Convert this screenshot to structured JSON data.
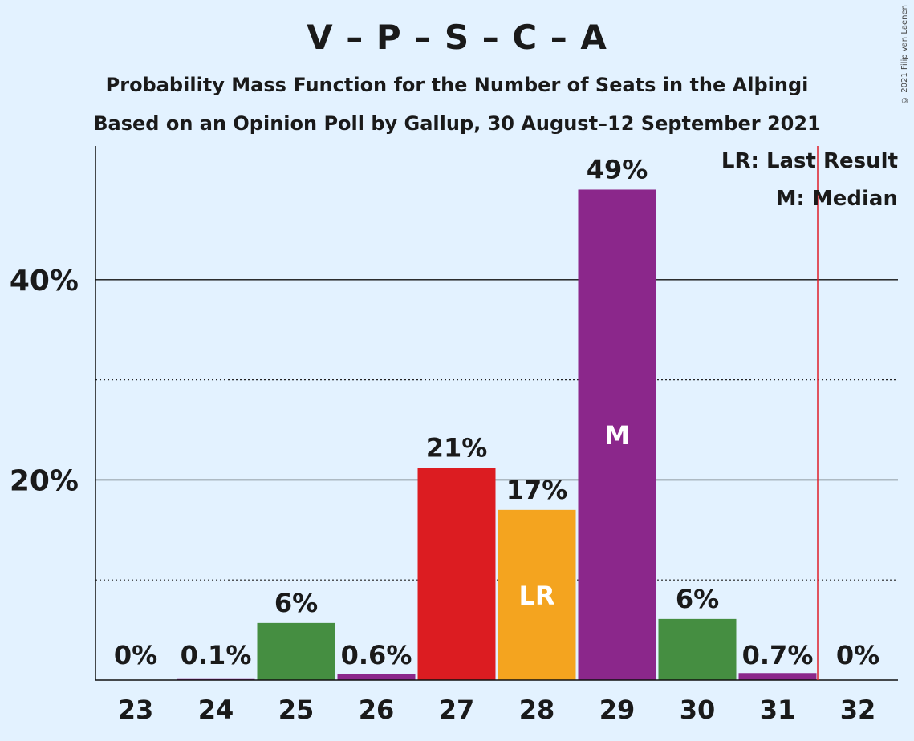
{
  "title": "V – P – S – C – A",
  "subtitle1": "Probability Mass Function for the Number of Seats in the Alþingi",
  "subtitle2": "Based on an Opinion Poll by Gallup, 30 August–12 September 2021",
  "copyright": "© 2021 Filip van Laenen",
  "legend": {
    "last_result": "LR: Last Result",
    "median": "M: Median"
  },
  "colors": {
    "background": "#e3f2ff",
    "last_result_line": "#e0202a",
    "green": "#458e41",
    "purple": "#8b278b",
    "red": "#dc1c21",
    "orange": "#f4a41f"
  },
  "chart_data": {
    "type": "bar",
    "categories": [
      "23",
      "24",
      "25",
      "26",
      "27",
      "28",
      "29",
      "30",
      "31",
      "32"
    ],
    "values": [
      0,
      0.1,
      5.7,
      0.6,
      21.2,
      17.0,
      49.0,
      6.1,
      0.7,
      0
    ],
    "labels": [
      "0%",
      "0.1%",
      "6%",
      "0.6%",
      "21%",
      "17%",
      "49%",
      "6%",
      "0.7%",
      "0%"
    ],
    "bar_colors": [
      "#458e41",
      "#8b278b",
      "#458e41",
      "#8b278b",
      "#dc1c21",
      "#f4a41f",
      "#8b278b",
      "#458e41",
      "#8b278b",
      "#458e41"
    ],
    "inner_labels": {
      "28": "LR",
      "29": "M"
    },
    "last_result_after": 31.5,
    "ylim": [
      0,
      53
    ],
    "y_major_ticks": [
      20,
      40
    ],
    "y_major_labels": [
      "20%",
      "40%"
    ],
    "y_minor_ticks": [
      10,
      30
    ]
  }
}
